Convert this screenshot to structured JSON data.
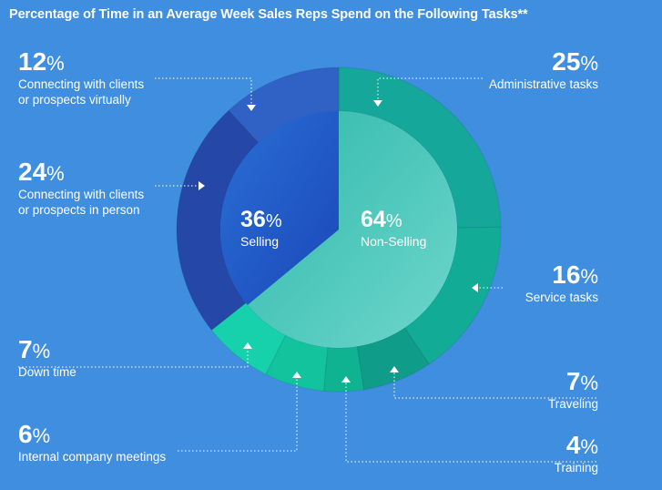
{
  "title": "Percentage of Time in an Average Week Sales Reps Spend on the Following Tasks**",
  "colors": {
    "background": "#3f8ee0",
    "selling_inner": "#1e56c8",
    "nonselling_inner": "#3fc0b4"
  },
  "chart_data": {
    "type": "pie",
    "subtype": "nested-donut",
    "title": "Percentage of Time in an Average Week Sales Reps Spend on the Following Tasks**",
    "unit": "%",
    "inner": [
      {
        "name": "Selling",
        "value": 36,
        "label": "36",
        "color": "#1e56c8"
      },
      {
        "name": "Non-Selling",
        "value": 64,
        "label": "64",
        "color": "#3fc0b4"
      }
    ],
    "outer": [
      {
        "name": "Administrative tasks",
        "value": 25,
        "label": "25",
        "color": "#15a79a"
      },
      {
        "name": "Service tasks",
        "value": 16,
        "label": "16",
        "color": "#12ab96"
      },
      {
        "name": "Traveling",
        "value": 7,
        "label": "7",
        "color": "#0f9c88"
      },
      {
        "name": "Training",
        "value": 4,
        "label": "4",
        "color": "#0fb391"
      },
      {
        "name": "Internal company meetings",
        "value": 6,
        "label": "6",
        "color": "#12c39e"
      },
      {
        "name": "Down time",
        "value": 7,
        "label": "7",
        "color": "#16d1ac"
      },
      {
        "name": "Connecting with clients or prospects in person",
        "value": 24,
        "label": "24",
        "color": "#2548a8"
      },
      {
        "name": "Connecting with clients or prospects virtually",
        "value": 12,
        "label": "12",
        "color": "#2f62c4"
      }
    ]
  },
  "labels": {
    "virtual": {
      "pct": "12",
      "sym": "%",
      "line1": "Connecting with clients",
      "line2": "or prospects virtually"
    },
    "person": {
      "pct": "24",
      "sym": "%",
      "line1": "Connecting with clients",
      "line2": "or prospects in person"
    },
    "downtime": {
      "pct": "7",
      "sym": "%",
      "line1": "Down time"
    },
    "meetings": {
      "pct": "6",
      "sym": "%",
      "line1": "Internal company meetings"
    },
    "admin": {
      "pct": "25",
      "sym": "%",
      "line1": "Administrative tasks"
    },
    "service": {
      "pct": "16",
      "sym": "%",
      "line1": "Service tasks"
    },
    "traveling": {
      "pct": "7",
      "sym": "%",
      "line1": "Traveling"
    },
    "training": {
      "pct": "4",
      "sym": "%",
      "line1": "Training"
    },
    "selling": {
      "pct": "36",
      "sym": "%",
      "line1": "Selling"
    },
    "nonselling": {
      "pct": "64",
      "sym": "%",
      "line1": "Non-Selling"
    }
  }
}
